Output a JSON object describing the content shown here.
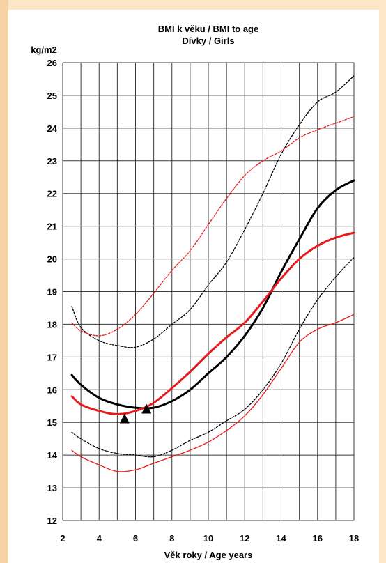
{
  "chart_data": {
    "type": "line",
    "title": "BMI k věku / BMI to age",
    "subtitle": "Dívky / Girls",
    "ylabel": "kg/m2",
    "xlabel": "Věk roky / Age years",
    "xlim": [
      2,
      18
    ],
    "ylim": [
      12,
      26
    ],
    "xticks": [
      2,
      4,
      6,
      8,
      10,
      12,
      14,
      16,
      18
    ],
    "yticks": [
      12,
      13,
      14,
      15,
      16,
      17,
      18,
      19,
      20,
      21,
      22,
      23,
      24,
      25,
      26
    ],
    "grid": true,
    "series": [
      {
        "color": "#000000",
        "style": "dashed-thin",
        "x": [
          2.5,
          3,
          4,
          5,
          6,
          7,
          8,
          9,
          10,
          11,
          12,
          13,
          14,
          15,
          16,
          17,
          18
        ],
        "values": [
          18.55,
          17.9,
          17.5,
          17.35,
          17.3,
          17.55,
          18.0,
          18.45,
          19.2,
          19.9,
          20.9,
          22.0,
          23.2,
          24.1,
          24.8,
          25.1,
          25.6
        ]
      },
      {
        "color": "#e8191c",
        "style": "dashed-thin",
        "x": [
          2.5,
          3,
          4,
          5,
          6,
          7,
          8,
          9,
          10,
          11,
          12,
          13,
          14,
          15,
          16,
          17,
          18
        ],
        "values": [
          18.05,
          17.8,
          17.65,
          17.85,
          18.3,
          18.95,
          19.65,
          20.25,
          21.05,
          21.85,
          22.55,
          23.0,
          23.3,
          23.7,
          23.95,
          24.15,
          24.35
        ]
      },
      {
        "color": "#000000",
        "style": "solid-thick",
        "x": [
          2.5,
          3,
          4,
          5,
          6,
          7,
          8,
          9,
          10,
          11,
          12,
          13,
          14,
          15,
          16,
          17,
          18
        ],
        "values": [
          16.45,
          16.15,
          15.75,
          15.55,
          15.45,
          15.45,
          15.65,
          16.0,
          16.5,
          17.0,
          17.65,
          18.5,
          19.6,
          20.6,
          21.55,
          22.1,
          22.4
        ]
      },
      {
        "color": "#e8191c",
        "style": "solid-thick",
        "x": [
          2.5,
          3,
          4,
          5,
          6,
          7,
          8,
          9,
          10,
          11,
          12,
          13,
          14,
          15,
          16,
          17,
          18
        ],
        "values": [
          15.8,
          15.55,
          15.35,
          15.25,
          15.35,
          15.6,
          16.05,
          16.55,
          17.1,
          17.6,
          18.05,
          18.7,
          19.4,
          20.0,
          20.4,
          20.65,
          20.8
        ]
      },
      {
        "color": "#000000",
        "style": "dashed-thin",
        "x": [
          2.5,
          3,
          4,
          5,
          6,
          7,
          8,
          9,
          10,
          11,
          12,
          13,
          14,
          15,
          16,
          17,
          18
        ],
        "values": [
          14.7,
          14.5,
          14.2,
          14.05,
          14.0,
          13.95,
          14.15,
          14.45,
          14.7,
          15.05,
          15.4,
          16.0,
          16.8,
          17.85,
          18.75,
          19.45,
          20.05
        ]
      },
      {
        "color": "#e8191c",
        "style": "solid-thin",
        "x": [
          2.5,
          3,
          4,
          5,
          6,
          7,
          8,
          9,
          10,
          11,
          12,
          13,
          14,
          15,
          16,
          17,
          18
        ],
        "values": [
          14.15,
          13.95,
          13.7,
          13.5,
          13.55,
          13.75,
          13.95,
          14.15,
          14.4,
          14.75,
          15.2,
          15.85,
          16.65,
          17.45,
          17.85,
          18.05,
          18.3
        ]
      }
    ],
    "markers": [
      {
        "shape": "triangle",
        "x": 5.4,
        "y": 15.1
      },
      {
        "shape": "triangle",
        "x": 6.6,
        "y": 15.4
      }
    ]
  }
}
